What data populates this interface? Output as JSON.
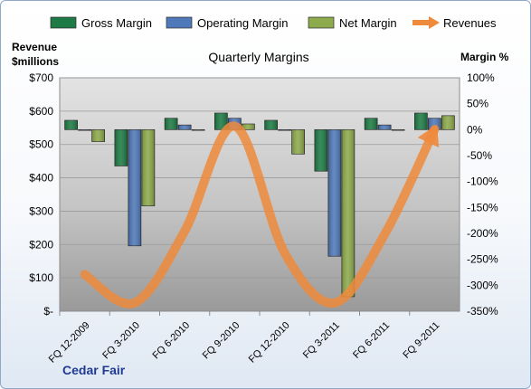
{
  "chart_data": {
    "type": "bar",
    "title": "Quarterly Margins",
    "categories": [
      "FQ 12-2009",
      "FQ 3-2010",
      "FQ 6-2010",
      "FQ 9-2010",
      "FQ 12-2010",
      "FQ 3-2011",
      "FQ 6-2011",
      "FQ 9-2011"
    ],
    "series": [
      {
        "name": "Gross Margin",
        "axis": "right",
        "kind": "bar",
        "color": "#1e7b45",
        "values": [
          18,
          -70,
          22,
          32,
          18,
          -80,
          22,
          32
        ]
      },
      {
        "name": "Operating Margin",
        "axis": "right",
        "kind": "bar",
        "color": "#4f79b8",
        "values": [
          0,
          -224,
          9,
          22,
          0,
          -244,
          9,
          22
        ]
      },
      {
        "name": "Net Margin",
        "axis": "right",
        "kind": "bar",
        "color": "#8daa4c",
        "values": [
          -23,
          -147,
          0,
          11,
          -47,
          -322,
          0,
          27
        ]
      },
      {
        "name": "Revenues",
        "axis": "left",
        "kind": "line",
        "color": "#ee8a3c",
        "values": [
          110,
          25,
          240,
          555,
          175,
          25,
          230,
          545
        ]
      }
    ],
    "left_axis": {
      "title_lines": [
        "Revenue",
        "$millions"
      ],
      "min": 0,
      "max": 700,
      "step": 100,
      "tick_labels": [
        "$-",
        "$100",
        "$200",
        "$300",
        "$400",
        "$500",
        "$600",
        "$700"
      ]
    },
    "right_axis": {
      "title": "Margin %",
      "min": -350,
      "max": 100,
      "step": 50,
      "tick_labels": [
        "-350%",
        "-300%",
        "-250%",
        "-200%",
        "-150%",
        "-100%",
        "-50%",
        "0%",
        "50%",
        "100%"
      ]
    },
    "legend_position": "top",
    "grid": true,
    "company": "Cedar Fair"
  }
}
